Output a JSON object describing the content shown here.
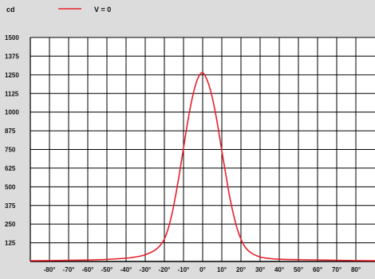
{
  "colors": {
    "background": "#dcdcdc",
    "plot_area": "#ffffff",
    "grid": "#000000",
    "series": "#e8202a",
    "text": "#111111"
  },
  "chart_data": {
    "type": "line",
    "unit_label": "cd",
    "legend": {
      "position": "top-left",
      "entries": [
        "V = 0"
      ]
    },
    "grid": true,
    "xlim": [
      -90,
      90
    ],
    "ylim": [
      0,
      1500
    ],
    "x_ticks": [
      -80,
      -70,
      -60,
      -50,
      -40,
      -30,
      -20,
      -10,
      0,
      10,
      20,
      30,
      40,
      50,
      60,
      70,
      80
    ],
    "x_tick_labels": [
      "-80°",
      "-70°",
      "-60°",
      "-50°",
      "-40°",
      "-30°",
      "-20°",
      "-10°",
      "0°",
      "10°",
      "20°",
      "30°",
      "40°",
      "50°",
      "60°",
      "70°",
      "80°"
    ],
    "y_ticks": [
      125,
      250,
      375,
      500,
      625,
      750,
      875,
      1000,
      1125,
      1250,
      1375,
      1500
    ],
    "y_tick_labels": [
      "125",
      "250",
      "375",
      "500",
      "625",
      "750",
      "875",
      "1000",
      "1125",
      "1250",
      "1375",
      "1500"
    ],
    "series": [
      {
        "name": "V = 0",
        "x": [
          -90,
          -80,
          -70,
          -60,
          -50,
          -40,
          -35,
          -30,
          -25,
          -22,
          -20,
          -18,
          -16,
          -14,
          -12,
          -10,
          -8,
          -6,
          -4,
          -2,
          0,
          2,
          4,
          6,
          8,
          10,
          12,
          14,
          16,
          18,
          20,
          22,
          25,
          30,
          35,
          40,
          50,
          60,
          70,
          80,
          90
        ],
        "y": [
          5,
          6,
          8,
          10,
          14,
          22,
          30,
          45,
          75,
          110,
          150,
          220,
          320,
          450,
          600,
          760,
          920,
          1060,
          1170,
          1240,
          1265,
          1225,
          1150,
          1040,
          900,
          740,
          590,
          440,
          320,
          220,
          150,
          100,
          60,
          30,
          20,
          15,
          12,
          10,
          8,
          6,
          5
        ]
      }
    ]
  }
}
